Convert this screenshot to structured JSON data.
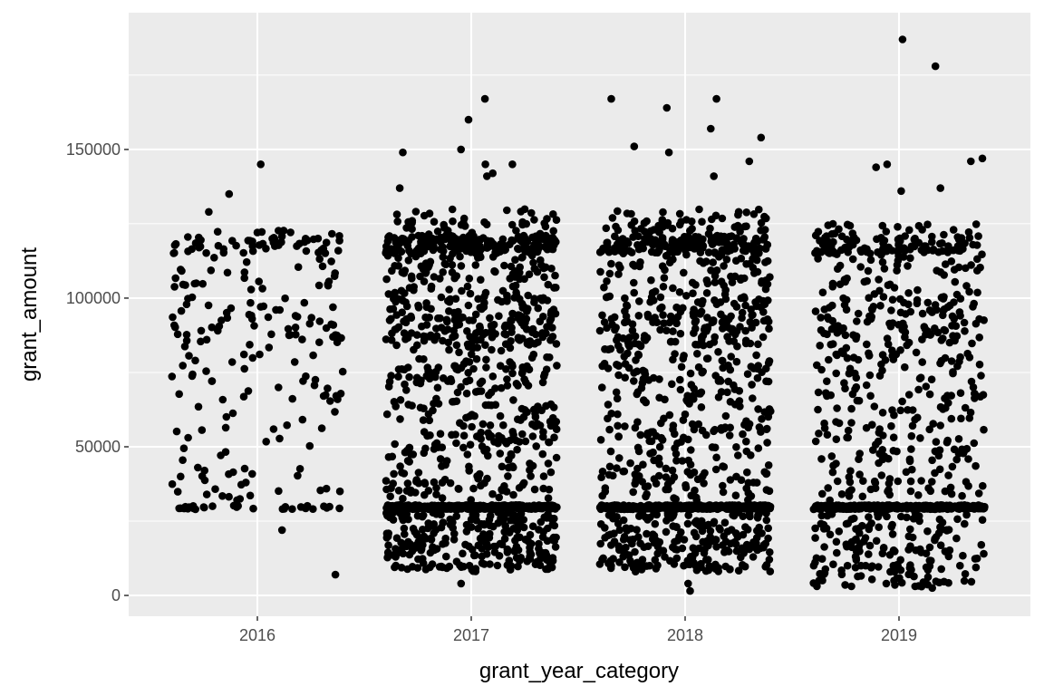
{
  "chart_data": {
    "type": "scatter",
    "title": "",
    "xlabel": "grant_year_category",
    "ylabel": "grant_amount",
    "categories": [
      "2016",
      "2017",
      "2018",
      "2019"
    ],
    "ylim": [
      -7000,
      196000
    ],
    "y_ticks": [
      0,
      50000,
      100000,
      150000
    ],
    "y_tick_labels": [
      "0",
      "50000",
      "100000",
      "150000"
    ],
    "jitter_width": 0.4,
    "grid": true,
    "legend": "none",
    "colors": {
      "panel": "#ebebeb",
      "grid": "#ffffff",
      "point": "#000000"
    },
    "series": [
      {
        "category": "2016",
        "n_points": 260,
        "band_value": 30000,
        "band_fraction": 0.12,
        "low_range": [
          0,
          0
        ],
        "low_fraction": 0.0,
        "main_range": [
          32000,
          123000
        ],
        "outliers": [
          145000,
          135000,
          129000,
          22000,
          7000,
          40000
        ]
      },
      {
        "category": "2017",
        "n_points": 1500,
        "band_value": 30000,
        "band_fraction": 0.28,
        "low_range": [
          8000,
          28000
        ],
        "low_fraction": 0.17,
        "main_range": [
          32000,
          130000
        ],
        "outliers": [
          167000,
          160000,
          150000,
          149000,
          145000,
          145000,
          142000,
          141000,
          137000,
          4000
        ]
      },
      {
        "category": "2018",
        "n_points": 1400,
        "band_value": 30000,
        "band_fraction": 0.32,
        "low_range": [
          8000,
          28000
        ],
        "low_fraction": 0.16,
        "main_range": [
          32000,
          130000
        ],
        "outliers": [
          167000,
          167000,
          164000,
          157000,
          154000,
          151000,
          149000,
          146000,
          141000,
          10000,
          10000,
          10000,
          10000,
          1500,
          4000
        ]
      },
      {
        "category": "2019",
        "n_points": 1000,
        "band_value": 30000,
        "band_fraction": 0.32,
        "low_range": [
          3000,
          28000
        ],
        "low_fraction": 0.16,
        "main_range": [
          32000,
          125000
        ],
        "outliers": [
          187000,
          178000,
          147000,
          146000,
          145000,
          144000,
          137000,
          136000,
          10000,
          10000,
          10000,
          10000,
          10000,
          10000,
          10000,
          3000,
          4000,
          5000,
          2500
        ]
      }
    ]
  }
}
